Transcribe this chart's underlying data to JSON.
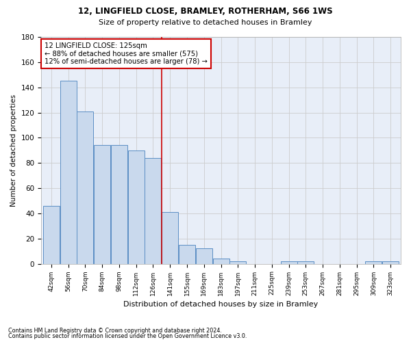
{
  "title1": "12, LINGFIELD CLOSE, BRAMLEY, ROTHERHAM, S66 1WS",
  "title2": "Size of property relative to detached houses in Bramley",
  "xlabel": "Distribution of detached houses by size in Bramley",
  "ylabel": "Number of detached properties",
  "categories": [
    "42sqm",
    "56sqm",
    "70sqm",
    "84sqm",
    "98sqm",
    "112sqm",
    "126sqm",
    "141sqm",
    "155sqm",
    "169sqm",
    "183sqm",
    "197sqm",
    "211sqm",
    "225sqm",
    "239sqm",
    "253sqm",
    "267sqm",
    "281sqm",
    "295sqm",
    "309sqm",
    "323sqm"
  ],
  "values": [
    46,
    145,
    121,
    94,
    94,
    90,
    84,
    41,
    15,
    12,
    4,
    2,
    0,
    0,
    2,
    2,
    0,
    0,
    0,
    2,
    2
  ],
  "bar_color": "#c9d9ed",
  "bar_edge_color": "#5b8ec4",
  "grid_color": "#cccccc",
  "background_color": "#e8eef8",
  "vline_color": "#cc0000",
  "annotation_text": "12 LINGFIELD CLOSE: 125sqm\n← 88% of detached houses are smaller (575)\n12% of semi-detached houses are larger (78) →",
  "annotation_box_color": "#cc0000",
  "ylim": [
    0,
    180
  ],
  "yticks": [
    0,
    20,
    40,
    60,
    80,
    100,
    120,
    140,
    160,
    180
  ],
  "footnote1": "Contains HM Land Registry data © Crown copyright and database right 2024.",
  "footnote2": "Contains public sector information licensed under the Open Government Licence v3.0."
}
